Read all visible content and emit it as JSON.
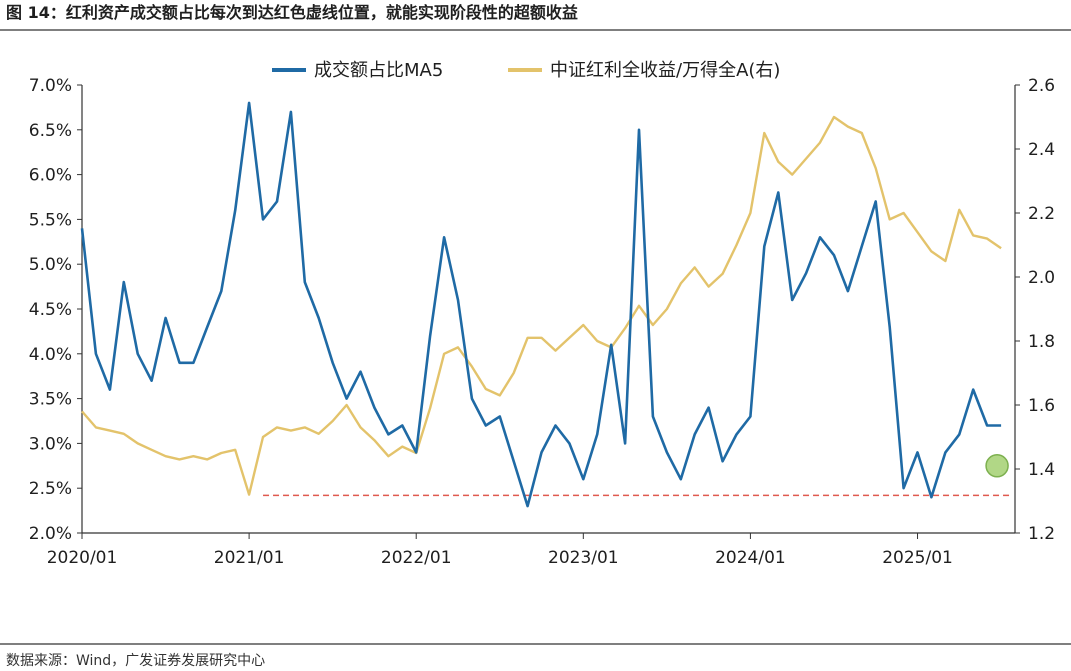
{
  "figure": {
    "title": "图 14：红利资产成交额占比每次到达红色虚线位置，就能实现阶段性的超额收益",
    "source": "数据来源：Wind，广发证券发展研究中心"
  },
  "colors": {
    "series_share": "#1f6aa5",
    "series_ratio": "#e3c36b",
    "threshold_line": "#e05a4f",
    "marker_fill": "#a9d37a",
    "marker_stroke": "#6fa83c"
  },
  "chart_data": {
    "type": "line",
    "x_ticks": [
      "2020/01",
      "2021/01",
      "2022/01",
      "2023/01",
      "2024/01",
      "2025/01"
    ],
    "left_axis": {
      "ylim": [
        2.0,
        7.0
      ],
      "ticks": [
        "2.0%",
        "2.5%",
        "3.0%",
        "3.5%",
        "4.0%",
        "4.5%",
        "5.0%",
        "5.5%",
        "6.0%",
        "6.5%",
        "7.0%"
      ]
    },
    "right_axis": {
      "ylim": [
        1.2,
        2.6
      ],
      "ticks": [
        "1.2",
        "1.4",
        "1.6",
        "1.8",
        "2.0",
        "2.2",
        "2.4",
        "2.6"
      ]
    },
    "legend_position": "top-center",
    "grid": false,
    "series": [
      {
        "name": "成交额占比MA5",
        "axis": "left",
        "x": [
          "2020/01",
          "2020/02",
          "2020/03",
          "2020/04",
          "2020/05",
          "2020/06",
          "2020/07",
          "2020/08",
          "2020/09",
          "2020/10",
          "2020/11",
          "2020/12",
          "2021/01",
          "2021/02",
          "2021/03",
          "2021/04",
          "2021/05",
          "2021/06",
          "2021/07",
          "2021/08",
          "2021/09",
          "2021/10",
          "2021/11",
          "2021/12",
          "2022/01",
          "2022/02",
          "2022/03",
          "2022/04",
          "2022/05",
          "2022/06",
          "2022/07",
          "2022/08",
          "2022/09",
          "2022/10",
          "2022/11",
          "2022/12",
          "2023/01",
          "2023/02",
          "2023/03",
          "2023/04",
          "2023/05",
          "2023/06",
          "2023/07",
          "2023/08",
          "2023/09",
          "2023/10",
          "2023/11",
          "2023/12",
          "2024/01",
          "2024/02",
          "2024/03",
          "2024/04",
          "2024/05",
          "2024/06",
          "2024/07",
          "2024/08",
          "2024/09",
          "2024/10",
          "2024/11",
          "2024/12",
          "2025/01",
          "2025/02",
          "2025/03",
          "2025/04",
          "2025/05",
          "2025/06",
          "2025/07"
        ],
        "values": [
          5.4,
          4.0,
          3.6,
          4.8,
          4.0,
          3.7,
          4.4,
          3.9,
          3.9,
          4.3,
          4.7,
          5.6,
          6.8,
          5.5,
          5.7,
          6.7,
          4.8,
          4.4,
          3.9,
          3.5,
          3.8,
          3.4,
          3.1,
          3.2,
          2.9,
          4.2,
          5.3,
          4.6,
          3.5,
          3.2,
          3.3,
          2.8,
          2.3,
          2.9,
          3.2,
          3.0,
          2.6,
          3.1,
          4.1,
          3.0,
          6.5,
          3.3,
          2.9,
          2.6,
          3.1,
          3.4,
          2.8,
          3.1,
          3.3,
          5.2,
          5.8,
          4.6,
          4.9,
          5.3,
          5.1,
          4.7,
          5.2,
          5.7,
          4.3,
          2.5,
          2.9,
          2.4,
          2.9,
          3.1,
          3.6,
          3.2,
          3.2
        ]
      },
      {
        "name": "中证红利全收益/万得全A(右)",
        "axis": "right",
        "x": [
          "2020/01",
          "2020/02",
          "2020/03",
          "2020/04",
          "2020/05",
          "2020/06",
          "2020/07",
          "2020/08",
          "2020/09",
          "2020/10",
          "2020/11",
          "2020/12",
          "2021/01",
          "2021/02",
          "2021/03",
          "2021/04",
          "2021/05",
          "2021/06",
          "2021/07",
          "2021/08",
          "2021/09",
          "2021/10",
          "2021/11",
          "2021/12",
          "2022/01",
          "2022/02",
          "2022/03",
          "2022/04",
          "2022/05",
          "2022/06",
          "2022/07",
          "2022/08",
          "2022/09",
          "2022/10",
          "2022/11",
          "2022/12",
          "2023/01",
          "2023/02",
          "2023/03",
          "2023/04",
          "2023/05",
          "2023/06",
          "2023/07",
          "2023/08",
          "2023/09",
          "2023/10",
          "2023/11",
          "2023/12",
          "2024/01",
          "2024/02",
          "2024/03",
          "2024/04",
          "2024/05",
          "2024/06",
          "2024/07",
          "2024/08",
          "2024/09",
          "2024/10",
          "2024/11",
          "2024/12",
          "2025/01",
          "2025/02",
          "2025/03",
          "2025/04",
          "2025/05",
          "2025/06",
          "2025/07"
        ],
        "values": [
          1.58,
          1.53,
          1.52,
          1.51,
          1.48,
          1.46,
          1.44,
          1.43,
          1.44,
          1.43,
          1.45,
          1.46,
          1.32,
          1.5,
          1.53,
          1.52,
          1.53,
          1.51,
          1.55,
          1.6,
          1.53,
          1.49,
          1.44,
          1.47,
          1.45,
          1.59,
          1.76,
          1.78,
          1.72,
          1.65,
          1.63,
          1.7,
          1.81,
          1.81,
          1.77,
          1.81,
          1.85,
          1.8,
          1.78,
          1.84,
          1.91,
          1.85,
          1.9,
          1.98,
          2.03,
          1.97,
          2.01,
          2.1,
          2.2,
          2.45,
          2.36,
          2.32,
          2.37,
          2.42,
          2.5,
          2.47,
          2.45,
          2.34,
          2.18,
          2.2,
          2.14,
          2.08,
          2.05,
          2.21,
          2.13,
          2.12,
          2.09
        ]
      }
    ],
    "threshold": {
      "axis": "left",
      "value": 2.42
    },
    "highlight_marker": {
      "axis": "right",
      "x": "2025/07",
      "value": 1.41
    }
  }
}
